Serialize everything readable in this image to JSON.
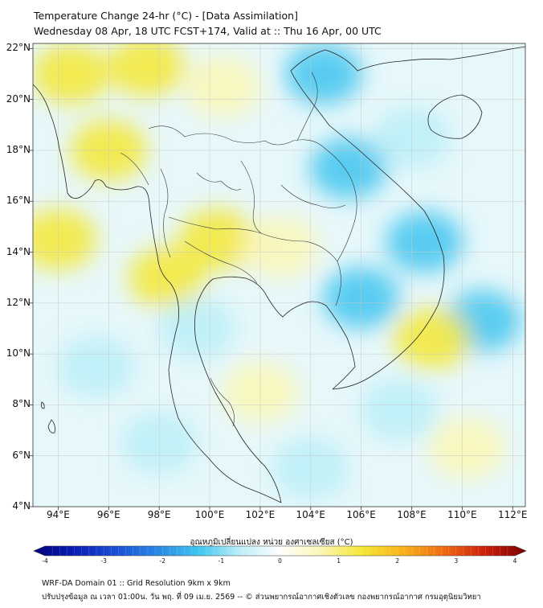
{
  "title_line1": "Temperature Change 24-hr (°C) - [Data Assimilation]",
  "title_line2": "Wednesday 08 Apr, 18 UTC FCST+174, Valid at :: Thu 16 Apr, 00 UTC",
  "lat_labels": [
    "22°N",
    "20°N",
    "18°N",
    "16°N",
    "14°N",
    "12°N",
    "10°N",
    "8°N",
    "6°N",
    "4°N"
  ],
  "lon_labels": [
    "94°E",
    "96°E",
    "98°E",
    "100°E",
    "102°E",
    "104°E",
    "106°E",
    "108°E",
    "110°E",
    "112°E"
  ],
  "colorbar": {
    "title": "อุณหภูมิเปลี่ยนแปลง หน่วย องศาเซลเซียส (°C)",
    "ticks": [
      "-4",
      "-3",
      "-2",
      "-1",
      "0",
      "1",
      "2",
      "3",
      "4"
    ],
    "min": -4,
    "max": 4,
    "colors": [
      "#00007a",
      "#0a1fb5",
      "#1c4fd6",
      "#2a86e4",
      "#3ec4ef",
      "#b9eef7",
      "#ffffff",
      "#fbf7b4",
      "#f5e733",
      "#f8b21c",
      "#ef6a12",
      "#cc1f0c",
      "#7a0000"
    ]
  },
  "footer_line1": "WRF-DA Domain 01 :: Grid Resolution 9km x 9km",
  "footer_line2": "ปรับปรุงข้อมูล ณ เวลา 01:00น. วัน พฤ. ที่ 09 เม.ย. 2569 -- © ส่วนพยากรณ์อากาศเชิงตัวเลข กองพยากรณ์อากาศ กรมอุตุนิยมวิทยา",
  "map": {
    "extent_lon": [
      93,
      112.5
    ],
    "extent_lat": [
      4,
      22.2
    ],
    "anomaly_blobs": [
      {
        "lon": 94.5,
        "lat": 21.0,
        "value": 1.3
      },
      {
        "lon": 97.5,
        "lat": 21.3,
        "value": 1.5
      },
      {
        "lon": 96.0,
        "lat": 18.0,
        "value": 1.4
      },
      {
        "lon": 94.0,
        "lat": 14.5,
        "value": 1.5
      },
      {
        "lon": 98.3,
        "lat": 13.0,
        "value": 1.6
      },
      {
        "lon": 100.3,
        "lat": 14.5,
        "value": 1.4
      },
      {
        "lon": 100.5,
        "lat": 20.5,
        "value": 0.8
      },
      {
        "lon": 104.5,
        "lat": 21.0,
        "value": -1.2
      },
      {
        "lon": 105.5,
        "lat": 17.3,
        "value": -1.3
      },
      {
        "lon": 108.5,
        "lat": 14.4,
        "value": -1.4
      },
      {
        "lon": 106.0,
        "lat": 12.2,
        "value": -1.2
      },
      {
        "lon": 110.8,
        "lat": 11.3,
        "value": -1.4
      },
      {
        "lon": 99.5,
        "lat": 11.0,
        "value": -1.0
      },
      {
        "lon": 107.5,
        "lat": 7.8,
        "value": -0.9
      },
      {
        "lon": 95.5,
        "lat": 9.5,
        "value": -0.8
      },
      {
        "lon": 98.0,
        "lat": 6.5,
        "value": -0.7
      },
      {
        "lon": 104.0,
        "lat": 5.5,
        "value": -0.6
      },
      {
        "lon": 108.8,
        "lat": 10.6,
        "value": 1.0
      },
      {
        "lon": 110.2,
        "lat": 6.3,
        "value": 0.9
      },
      {
        "lon": 102.0,
        "lat": 8.5,
        "value": 0.8
      },
      {
        "lon": 108.0,
        "lat": 18.5,
        "value": -0.6
      },
      {
        "lon": 102.8,
        "lat": 14.2,
        "value": 0.6
      }
    ]
  }
}
